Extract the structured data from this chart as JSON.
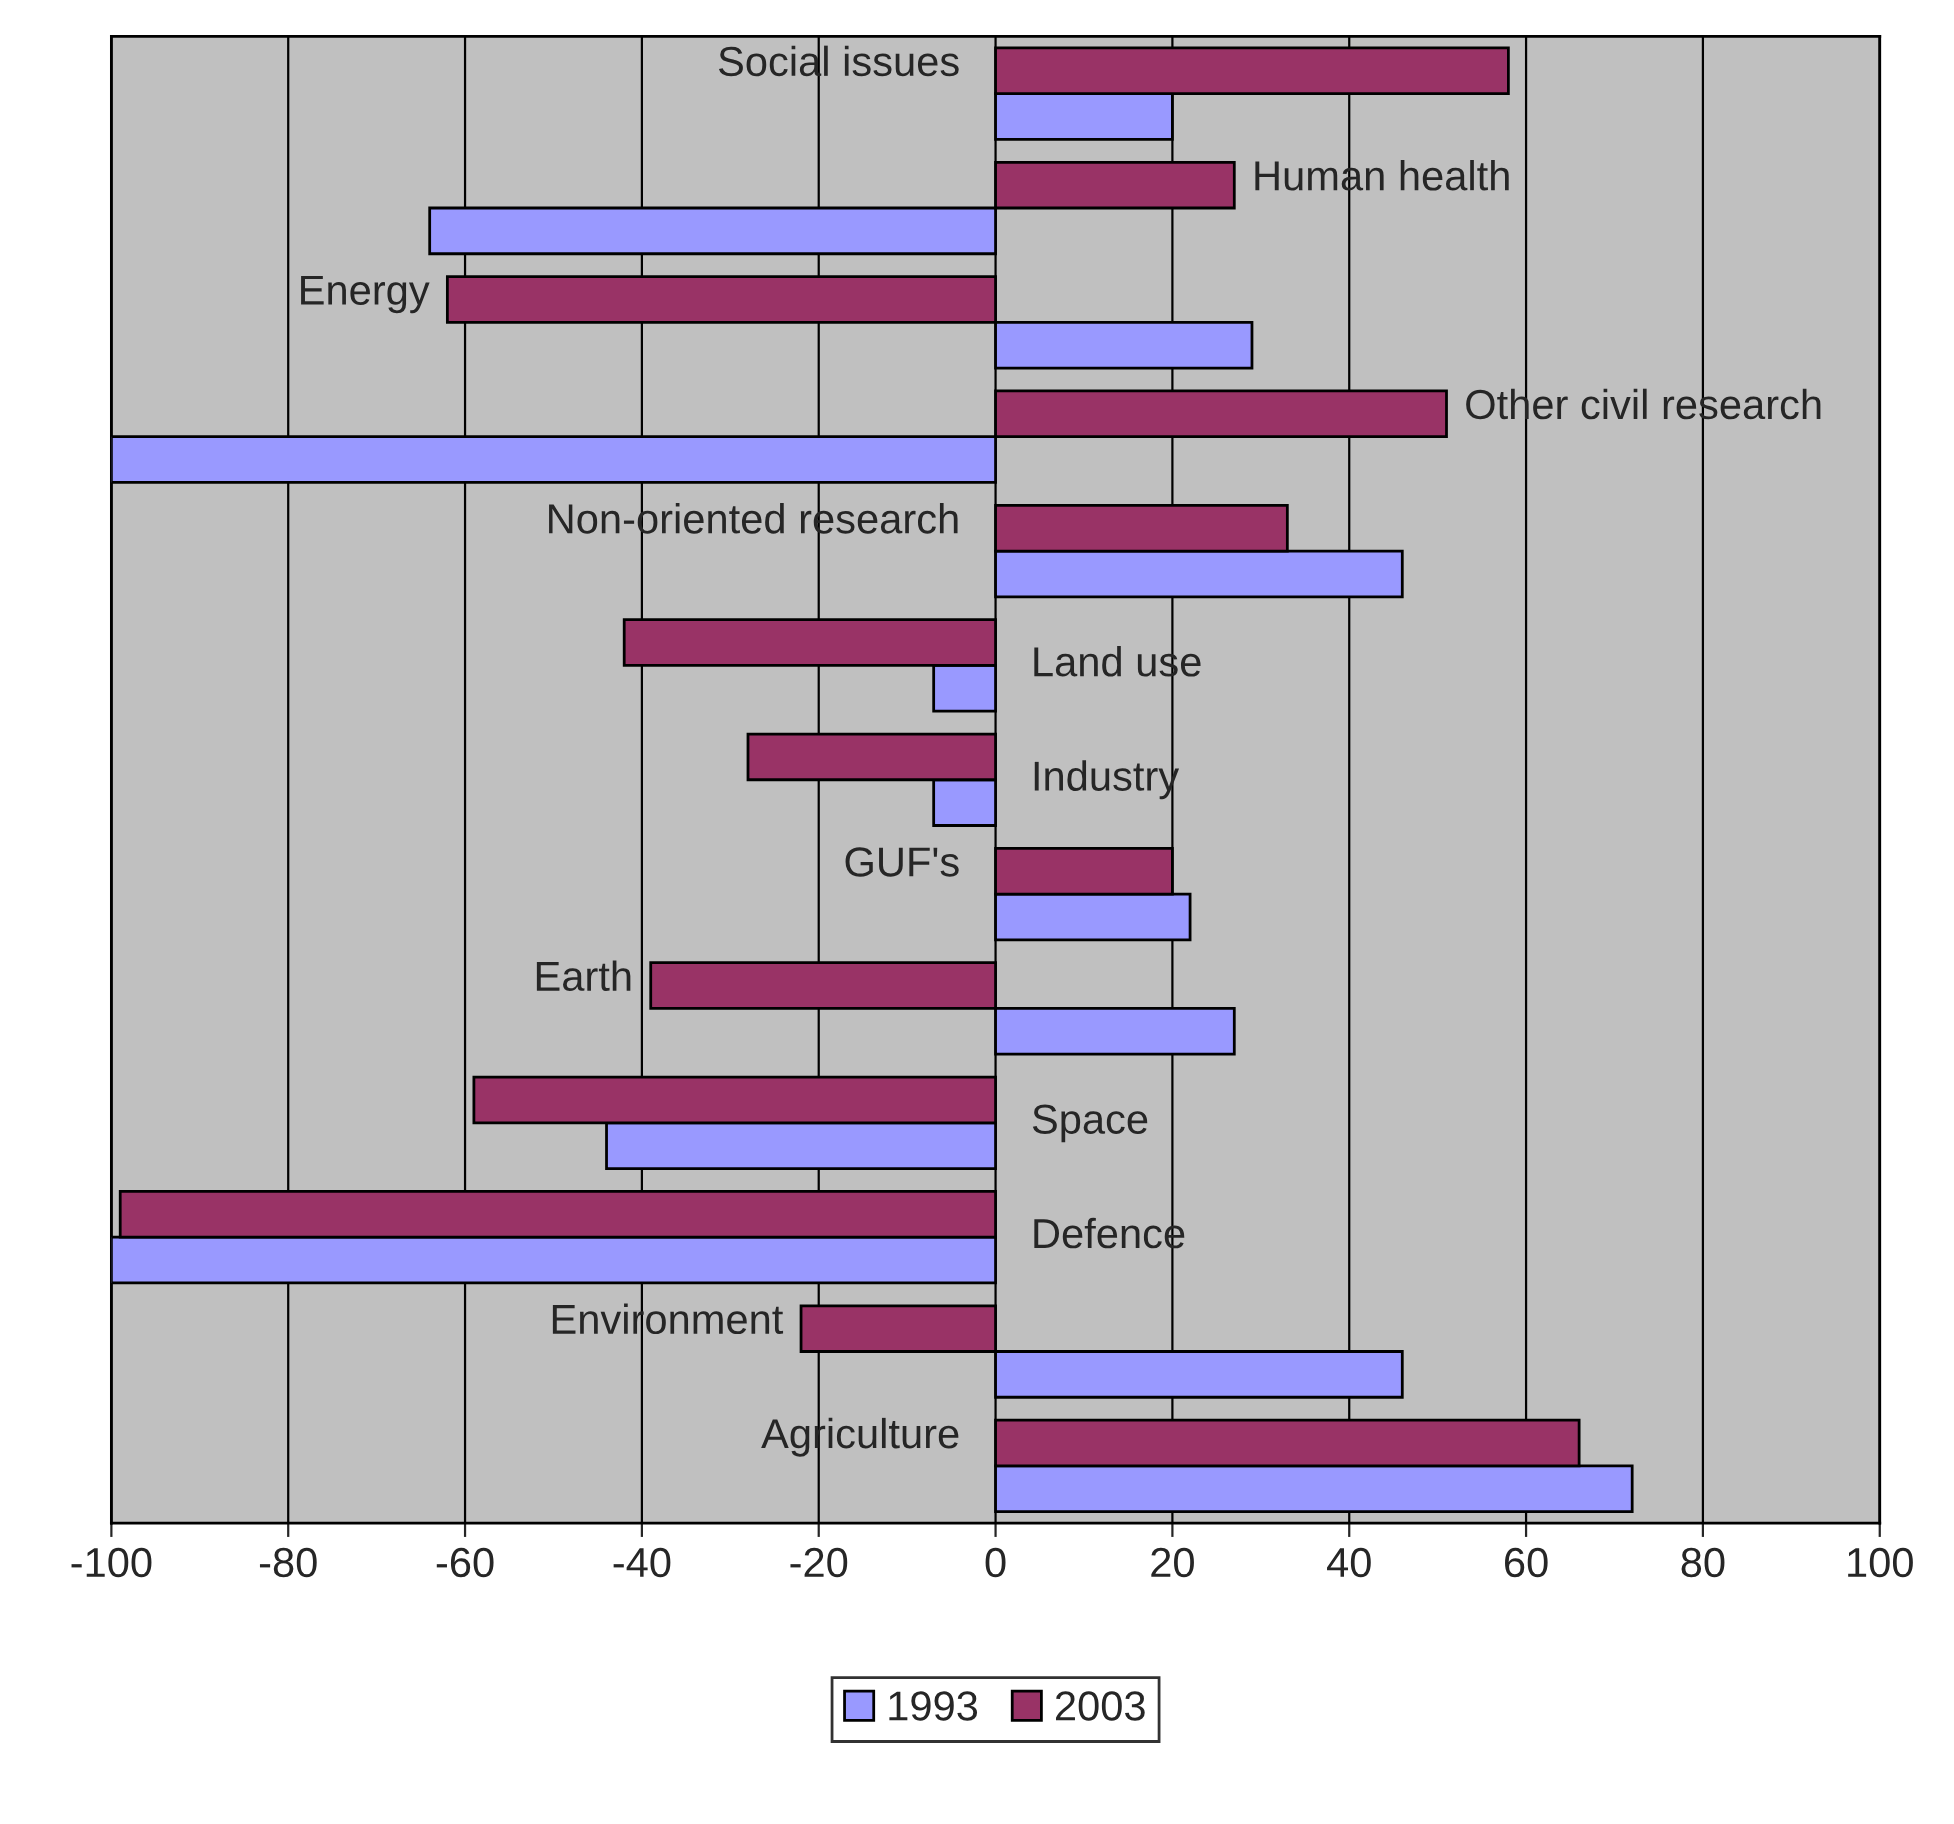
{
  "chart_data": {
    "type": "bar",
    "orientation": "horizontal",
    "categories": [
      "Social issues",
      "Human health",
      "Energy",
      "Other civil research",
      "Non-oriented research",
      "Land use",
      "Industry",
      "GUF's",
      "Earth",
      "Space",
      "Defence",
      "Environment",
      "Agriculture"
    ],
    "series": [
      {
        "name": "1993",
        "color": "#9999ff",
        "values": [
          20,
          -64,
          29,
          -100,
          46,
          -7,
          -7,
          22,
          27,
          -44,
          -100,
          46,
          72
        ]
      },
      {
        "name": "2003",
        "color": "#993366",
        "values": [
          58,
          27,
          -62,
          51,
          33,
          -42,
          -28,
          20,
          -39,
          -59,
          -99,
          -22,
          66
        ]
      }
    ],
    "xlim": [
      -100,
      100
    ],
    "xticks": [
      -100,
      -80,
      -60,
      -40,
      -20,
      0,
      20,
      40,
      60,
      80,
      100
    ],
    "grid": "x",
    "legend": "bottom",
    "tick_labels": "x"
  }
}
